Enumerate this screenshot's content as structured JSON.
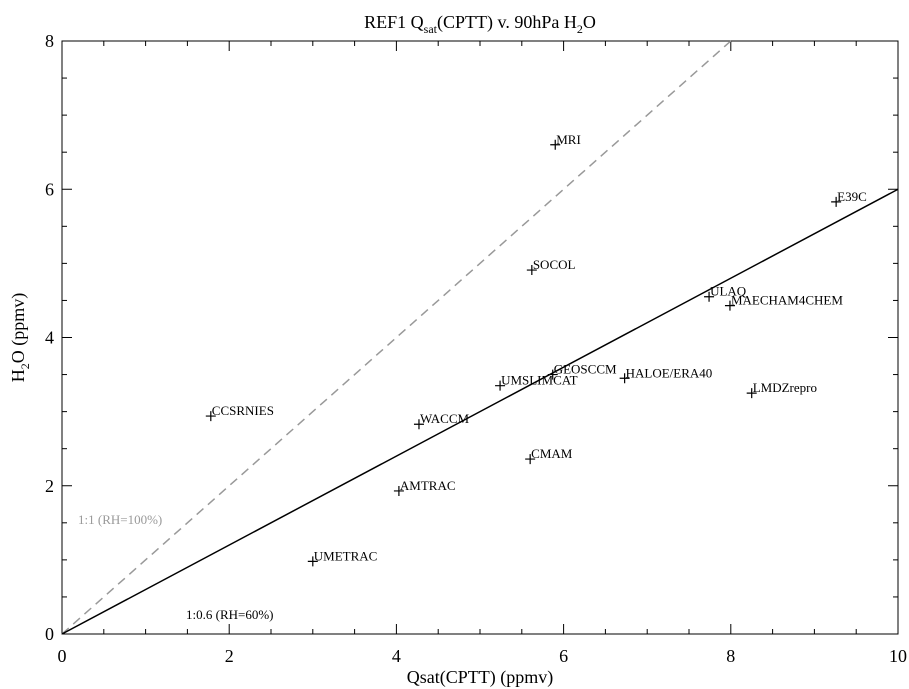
{
  "chart_data": {
    "type": "scatter",
    "title": [
      {
        "text": "REF1 Q"
      },
      {
        "text": "sat",
        "sub": true
      },
      {
        "text": "(CPTT) v. 90hPa H"
      },
      {
        "text": "2",
        "sub": true
      },
      {
        "text": "O"
      }
    ],
    "xlabel": [
      {
        "text": "Qsat(CPTT) (ppmv)"
      }
    ],
    "ylabel": [
      {
        "text": "H"
      },
      {
        "text": "2",
        "sub": true
      },
      {
        "text": "O (ppmv)"
      }
    ],
    "xlim": [
      0,
      10
    ],
    "ylim": [
      0,
      8
    ],
    "xticks": [
      0,
      2,
      4,
      6,
      8,
      10
    ],
    "yticks": [
      0,
      2,
      4,
      6,
      8
    ],
    "color": "#000000",
    "points": [
      {
        "name": "MRI",
        "x": 5.9,
        "y": 6.6
      },
      {
        "name": "E39C",
        "x": 9.26,
        "y": 5.83
      },
      {
        "name": "SOCOL",
        "x": 5.62,
        "y": 4.91
      },
      {
        "name": "ULAQ",
        "x": 7.74,
        "y": 4.55
      },
      {
        "name": "MAECHAM4CHEM",
        "x": 7.99,
        "y": 4.43
      },
      {
        "name": "GEOSCCM",
        "x": 5.87,
        "y": 3.5
      },
      {
        "name": "HALOE/ERA40",
        "x": 6.73,
        "y": 3.45
      },
      {
        "name": "UMSLIMCAT",
        "x": 5.24,
        "y": 3.35
      },
      {
        "name": "LMDZrepro",
        "x": 8.25,
        "y": 3.25
      },
      {
        "name": "CCSRNIES",
        "x": 1.78,
        "y": 2.94
      },
      {
        "name": "WACCM",
        "x": 4.27,
        "y": 2.83
      },
      {
        "name": "CMAM",
        "x": 5.6,
        "y": 2.36
      },
      {
        "name": "AMTRAC",
        "x": 4.03,
        "y": 1.93
      },
      {
        "name": "UMETRAC",
        "x": 3.0,
        "y": 0.98
      }
    ],
    "lines": [
      {
        "slope": 1,
        "label": "1:1 (RH=100%)",
        "color": "#999999",
        "dashed": true
      },
      {
        "slope": 0.6,
        "label": "1:0.6 (RH=60%)",
        "color": "#000000",
        "dashed": false
      }
    ]
  }
}
